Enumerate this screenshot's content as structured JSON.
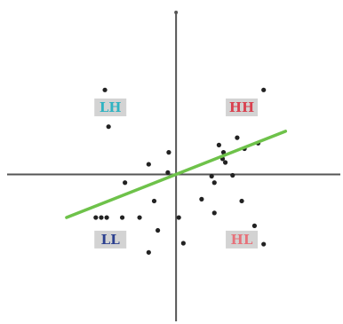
{
  "chart_data": {
    "type": "scatter",
    "title": "",
    "xlabel": "",
    "ylabel": "",
    "xlim": [
      -193,
      183
    ],
    "ylim": [
      -163,
      190
    ],
    "grid": false,
    "colors": {
      "axis": "#555555",
      "point": "#222222",
      "fit_line": "#6ec24a",
      "label_bg": "#d3d3d3",
      "LH": "#2fb3c2",
      "HH": "#d9414f",
      "LL": "#2b3f8f",
      "HL": "#e7717a"
    },
    "quadrant_labels": [
      {
        "id": "LH",
        "text": "LH",
        "x": -72,
        "y": 73
      },
      {
        "id": "HH",
        "text": "HH",
        "x": 72,
        "y": 73
      },
      {
        "id": "LL",
        "text": "LL",
        "x": -72,
        "y": -71
      },
      {
        "id": "HL",
        "text": "HL",
        "x": 72,
        "y": -71
      }
    ],
    "fit_line": {
      "x1": -120,
      "y1": -47,
      "x2": 120,
      "y2": 47
    },
    "points": [
      {
        "x": -78,
        "y": 92
      },
      {
        "x": -74,
        "y": 52
      },
      {
        "x": 96,
        "y": 92
      },
      {
        "x": 67,
        "y": 40
      },
      {
        "x": 90,
        "y": 34
      },
      {
        "x": 75,
        "y": 28
      },
      {
        "x": 52,
        "y": 24
      },
      {
        "x": 47,
        "y": 32
      },
      {
        "x": 51,
        "y": 17
      },
      {
        "x": 54,
        "y": 13
      },
      {
        "x": -8,
        "y": 24
      },
      {
        "x": -30,
        "y": 11
      },
      {
        "x": -9,
        "y": 2
      },
      {
        "x": -56,
        "y": -9
      },
      {
        "x": 39,
        "y": -2
      },
      {
        "x": 62,
        "y": -1
      },
      {
        "x": 42,
        "y": -9
      },
      {
        "x": 28,
        "y": -27
      },
      {
        "x": 72,
        "y": -29
      },
      {
        "x": 42,
        "y": -42
      },
      {
        "x": -88,
        "y": -47
      },
      {
        "x": -82,
        "y": -47
      },
      {
        "x": -76,
        "y": -47
      },
      {
        "x": -59,
        "y": -47
      },
      {
        "x": -40,
        "y": -47
      },
      {
        "x": -24,
        "y": -29
      },
      {
        "x": 3,
        "y": -47
      },
      {
        "x": -20,
        "y": -61
      },
      {
        "x": 8,
        "y": -75
      },
      {
        "x": -30,
        "y": -85
      },
      {
        "x": 86,
        "y": -56
      },
      {
        "x": 96,
        "y": -76
      }
    ]
  }
}
